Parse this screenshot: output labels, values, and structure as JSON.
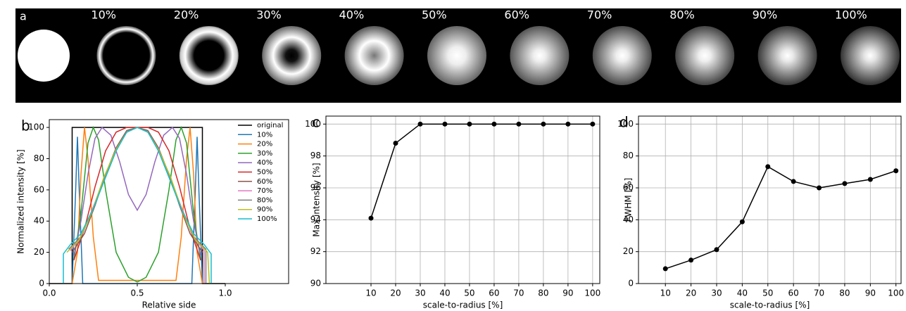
{
  "chart_data": [
    {
      "type": "image_strip",
      "panel_label": "a",
      "categories": [
        null,
        "10%",
        "20%",
        "30%",
        "40%",
        "50%",
        "60%",
        "70%",
        "80%",
        "90%",
        "100%"
      ]
    },
    {
      "type": "line",
      "panel_label": "b",
      "xlabel": "Relative side",
      "ylabel": "Normalized intensity [%]",
      "xlim": [
        0,
        1.36
      ],
      "ylim": [
        0,
        105
      ],
      "xticks": [
        {
          "value": 0,
          "label": "0.0"
        },
        {
          "value": 0.5,
          "label": "0.5"
        },
        {
          "value": 1,
          "label": "1.0"
        }
      ],
      "yticks": [
        0,
        20,
        40,
        60,
        80,
        100
      ],
      "grid": false,
      "legend": "upper right",
      "series": [
        {
          "name": "original",
          "color": "#000000",
          "x": [
            0,
            0.13,
            0.13,
            0.87,
            0.87,
            1.0
          ],
          "values": [
            0,
            0,
            100,
            100,
            0,
            0
          ]
        },
        {
          "name": "10%",
          "color": "#1f77b4",
          "x": [
            0.13,
            0.15,
            0.16,
            0.17,
            0.19,
            0.81,
            0.83,
            0.84,
            0.85,
            0.87
          ],
          "values": [
            0,
            60,
            94,
            60,
            0,
            0,
            60,
            94,
            60,
            0
          ]
        },
        {
          "name": "20%",
          "color": "#ff7f0e",
          "x": [
            0.13,
            0.16,
            0.18,
            0.2,
            0.22,
            0.25,
            0.28,
            0.72,
            0.75,
            0.78,
            0.8,
            0.82,
            0.84,
            0.87
          ],
          "values": [
            0,
            20,
            70,
            100,
            80,
            30,
            2,
            2,
            30,
            80,
            100,
            70,
            20,
            0
          ]
        },
        {
          "name": "30%",
          "color": "#2ca02c",
          "x": [
            0.14,
            0.18,
            0.22,
            0.25,
            0.28,
            0.32,
            0.38,
            0.45,
            0.5,
            0.55,
            0.62,
            0.68,
            0.72,
            0.75,
            0.78,
            0.82,
            0.86
          ],
          "values": [
            15,
            45,
            90,
            100,
            92,
            60,
            20,
            4,
            1,
            4,
            20,
            60,
            92,
            100,
            90,
            45,
            15
          ]
        },
        {
          "name": "40%",
          "color": "#9467bd",
          "x": [
            0.14,
            0.18,
            0.22,
            0.26,
            0.3,
            0.35,
            0.4,
            0.45,
            0.5,
            0.55,
            0.6,
            0.65,
            0.7,
            0.74,
            0.78,
            0.82,
            0.86
          ],
          "values": [
            18,
            40,
            70,
            93,
            100,
            95,
            78,
            57,
            47,
            57,
            78,
            95,
            100,
            93,
            70,
            40,
            18
          ]
        },
        {
          "name": "50%",
          "color": "#d62728",
          "x": [
            0.14,
            0.2,
            0.26,
            0.32,
            0.38,
            0.44,
            0.5,
            0.56,
            0.62,
            0.68,
            0.74,
            0.8,
            0.86
          ],
          "values": [
            15,
            35,
            62,
            85,
            97,
            100,
            100,
            100,
            97,
            85,
            62,
            35,
            15
          ]
        },
        {
          "name": "60%",
          "color": "#8c564b",
          "x": [
            0.13,
            0.2,
            0.26,
            0.32,
            0.38,
            0.44,
            0.5,
            0.56,
            0.62,
            0.68,
            0.74,
            0.8,
            0.87
          ],
          "values": [
            20,
            32,
            50,
            70,
            87,
            98,
            100,
            98,
            87,
            70,
            50,
            32,
            20
          ]
        },
        {
          "name": "70%",
          "color": "#e377c2",
          "x": [
            0.12,
            0.19,
            0.26,
            0.32,
            0.38,
            0.44,
            0.5,
            0.56,
            0.62,
            0.68,
            0.74,
            0.81,
            0.88,
            0.88
          ],
          "values": [
            21,
            32,
            52,
            70,
            86,
            97,
            100,
            97,
            86,
            70,
            52,
            32,
            21,
            0
          ]
        },
        {
          "name": "80%",
          "color": "#7f7f7f",
          "x": [
            0.11,
            0.18,
            0.25,
            0.32,
            0.38,
            0.44,
            0.5,
            0.56,
            0.62,
            0.68,
            0.75,
            0.82,
            0.89,
            0.89
          ],
          "values": [
            22,
            30,
            48,
            70,
            86,
            97,
            100,
            97,
            86,
            70,
            48,
            30,
            22,
            0
          ]
        },
        {
          "name": "90%",
          "color": "#bcbd22",
          "x": [
            0.1,
            0.17,
            0.24,
            0.31,
            0.38,
            0.44,
            0.5,
            0.56,
            0.62,
            0.69,
            0.76,
            0.83,
            0.9,
            0.91
          ],
          "values": [
            20,
            28,
            45,
            68,
            86,
            97,
            100,
            97,
            86,
            68,
            45,
            28,
            20,
            0
          ]
        },
        {
          "name": "100%",
          "color": "#17becf",
          "x": [
            0.08,
            0.08,
            0.12,
            0.18,
            0.25,
            0.32,
            0.38,
            0.44,
            0.5,
            0.56,
            0.62,
            0.68,
            0.75,
            0.82,
            0.88,
            0.92,
            0.92
          ],
          "values": [
            0,
            19,
            25,
            32,
            48,
            68,
            85,
            97,
            100,
            97,
            85,
            68,
            48,
            32,
            25,
            19,
            0
          ]
        }
      ]
    },
    {
      "type": "line",
      "panel_label": "c",
      "xlabel": "scale-to-radius [%]",
      "ylabel": "Max intensity [%]",
      "xlim": [
        -8.3,
        102.9
      ],
      "ylim": [
        90,
        100.5
      ],
      "xticks": [
        10,
        20,
        30,
        40,
        50,
        60,
        70,
        80,
        90,
        100
      ],
      "yticks": [
        90,
        92,
        94,
        96,
        98,
        100
      ],
      "grid": true,
      "x": [
        10,
        20,
        30,
        40,
        50,
        60,
        70,
        80,
        90,
        100
      ],
      "series": [
        {
          "color": "#000000",
          "marker": true,
          "values": [
            94.1,
            98.8,
            100,
            100,
            100,
            100,
            100,
            100,
            100,
            100
          ]
        }
      ]
    },
    {
      "type": "line",
      "panel_label": "d",
      "xlabel": "scale-to-radius [%]",
      "ylabel": "FWHM [%]",
      "xlim": [
        -0.5,
        102
      ],
      "ylim": [
        0,
        105
      ],
      "xticks": [
        10,
        20,
        30,
        40,
        50,
        60,
        70,
        80,
        90,
        100
      ],
      "yticks": [
        0,
        20,
        40,
        60,
        80,
        100
      ],
      "grid": true,
      "x": [
        10,
        20,
        30,
        40,
        50,
        60,
        70,
        80,
        90,
        100
      ],
      "series": [
        {
          "color": "#000000",
          "marker": true,
          "values": [
            9.3,
            14.7,
            21.3,
            38.7,
            73.3,
            64.0,
            60.0,
            62.7,
            65.3,
            70.7
          ]
        }
      ]
    }
  ]
}
